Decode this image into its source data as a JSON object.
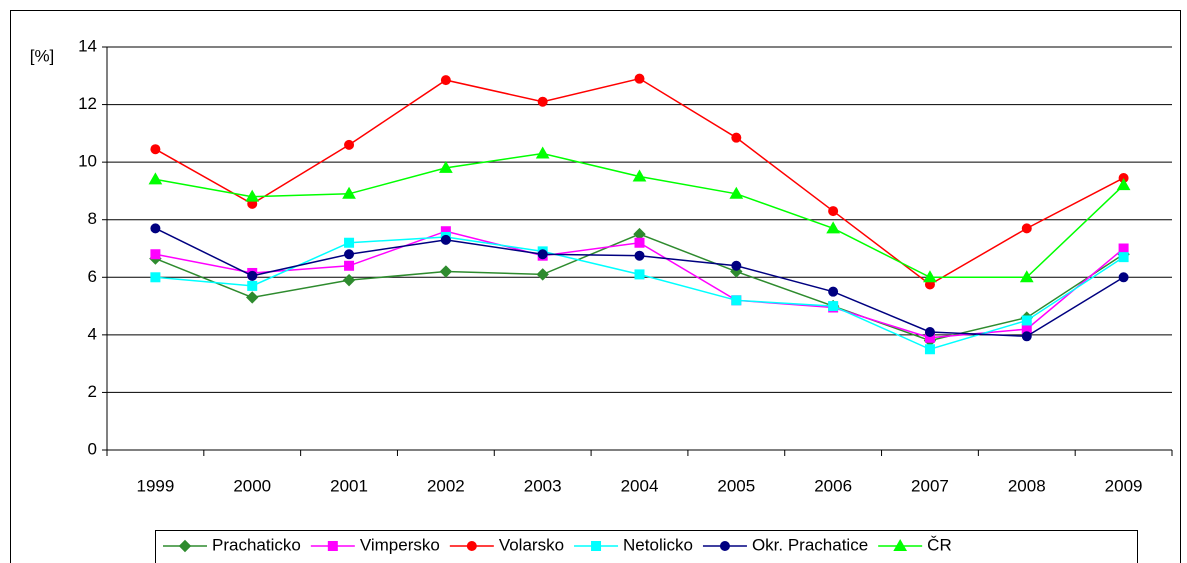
{
  "chart_data": {
    "type": "line",
    "ylabel": "[%]",
    "categories": [
      "1999",
      "2000",
      "2001",
      "2002",
      "2003",
      "2004",
      "2005",
      "2006",
      "2007",
      "2008",
      "2009"
    ],
    "ylim": [
      0,
      14
    ],
    "yticks": [
      0,
      2,
      4,
      6,
      8,
      10,
      12,
      14
    ],
    "grid": true,
    "legend": "bottom",
    "series": [
      {
        "name": "Prachaticko",
        "color": "#2e8b2e",
        "marker": "diamond",
        "values": [
          6.65,
          5.3,
          5.9,
          6.2,
          6.1,
          7.5,
          6.2,
          5.0,
          3.8,
          4.6,
          6.8
        ]
      },
      {
        "name": "Vimpersko",
        "color": "#ff00ff",
        "marker": "square",
        "values": [
          6.8,
          6.15,
          6.4,
          7.6,
          6.75,
          7.2,
          5.2,
          4.95,
          3.9,
          4.2,
          7.0
        ]
      },
      {
        "name": "Volarsko",
        "color": "#ff0000",
        "marker": "circle",
        "values": [
          10.45,
          8.55,
          10.6,
          12.85,
          12.1,
          12.9,
          10.85,
          8.3,
          5.75,
          7.7,
          9.45
        ]
      },
      {
        "name": "Netolicko",
        "color": "#00ffff",
        "marker": "square",
        "values": [
          6.0,
          5.7,
          7.2,
          7.4,
          6.9,
          6.1,
          5.2,
          5.0,
          3.5,
          4.5,
          6.7
        ]
      },
      {
        "name": "Okr. Prachatice",
        "color": "#000080",
        "marker": "circle",
        "values": [
          7.7,
          6.05,
          6.8,
          7.3,
          6.8,
          6.75,
          6.4,
          5.5,
          4.1,
          3.95,
          6.0
        ]
      },
      {
        "name": "ČR",
        "color": "#00ff00",
        "marker": "triangle",
        "values": [
          9.4,
          8.8,
          8.9,
          9.8,
          10.3,
          9.5,
          8.9,
          7.7,
          6.0,
          6.0,
          9.2
        ]
      }
    ]
  }
}
